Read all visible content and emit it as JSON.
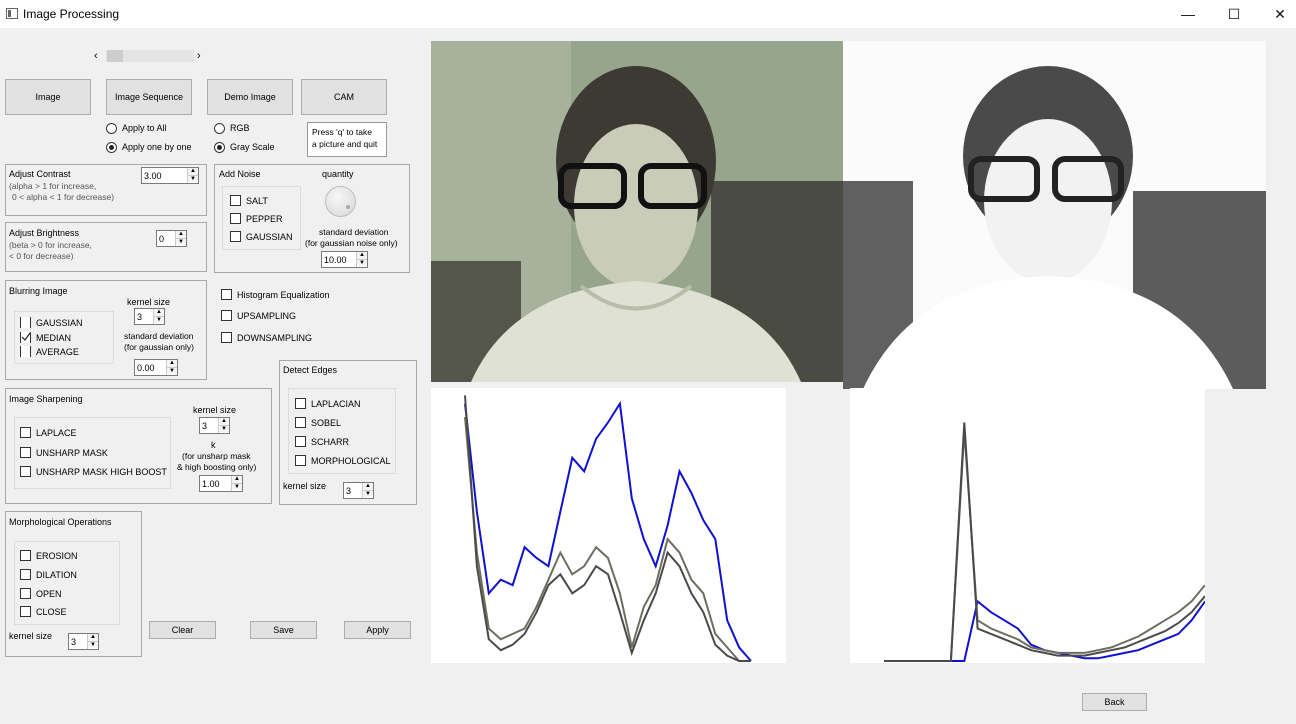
{
  "window": {
    "title": "Image Processing",
    "minimize": "—",
    "maximize": "☐",
    "close": "✕"
  },
  "slider": {
    "left": "‹",
    "right": "›"
  },
  "sources": {
    "image": "Image",
    "image_sequence": "Image Sequence",
    "demo_image": "Demo Image",
    "cam": "CAM"
  },
  "apply_mode": {
    "apply_all": "Apply to All",
    "apply_one": "Apply one by one",
    "selected": "apply_one"
  },
  "color_mode": {
    "rgb": "RGB",
    "gray": "Gray Scale",
    "selected": "gray"
  },
  "cam_info": {
    "line1": "Press 'q' to take",
    "line2": "a picture and quit"
  },
  "contrast": {
    "title": "Adjust Contrast",
    "hint1": "(alpha > 1 for increase,",
    "hint2": "0 < alpha < 1 for decrease)",
    "value": "3.00"
  },
  "brightness": {
    "title": "Adjust Brightness",
    "hint1": "(beta > 0 for increase,",
    "hint2": "< 0 for decrease)",
    "value": "0"
  },
  "noise": {
    "title": "Add Noise",
    "quantity_label": "quantity",
    "salt": "SALT",
    "pepper": "PEPPER",
    "gaussian": "GAUSSIAN",
    "std_label1": "standard deviation",
    "std_label2": "(for gaussian noise only)",
    "std_value": "10.00"
  },
  "blurring": {
    "title": "Blurring Image",
    "kernel_label": "kernel size",
    "kernel_value": "3",
    "gaussian": "GAUSSIAN",
    "median": "MEDIAN",
    "average": "AVERAGE",
    "median_checked": true,
    "std_label1": "standard deviation",
    "std_label2": "(for gaussian only)",
    "std_value": "0.00"
  },
  "options": {
    "hist_eq": "Histogram Equalization",
    "upsampling": "UPSAMPLING",
    "downsampling": "DOWNSAMPLING"
  },
  "sharpening": {
    "title": "Image Sharpening",
    "kernel_label": "kernel size",
    "kernel_value": "3",
    "laplace": "LAPLACE",
    "unsharp": "UNSHARP MASK",
    "highboost": "UNSHARP MASK  HIGH BOOST",
    "k_label": "k",
    "k_hint1": "(for unsharp mask",
    "k_hint2": "& high boosting only)",
    "k_value": "1.00"
  },
  "edges": {
    "title": "Detect Edges",
    "laplacian": "LAPLACIAN",
    "sobel": "SOBEL",
    "scharr": "SCHARR",
    "morphological": "MORPHOLOGICAL",
    "kernel_label": "kernel size",
    "kernel_value": "3"
  },
  "morph": {
    "title": "Morphological Operations",
    "erosion": "EROSION",
    "dilation": "DILATION",
    "open": "OPEN",
    "close": "CLOSE",
    "kernel_label": "kernel size",
    "kernel_value": "3"
  },
  "actions": {
    "clear": "Clear",
    "save": "Save",
    "apply": "Apply",
    "back": "Back"
  },
  "colors": {
    "hist_blue": "#1010d0",
    "hist_gray": "#6e6e60",
    "hist_dark": "#4a4a4a"
  },
  "chart_data": [
    {
      "type": "line",
      "series": [
        {
          "values": [
            0.95,
            0.55,
            0.25,
            0.3,
            0.28,
            0.42,
            0.38,
            0.35,
            0.55,
            0.75,
            0.7,
            0.82,
            0.88,
            0.95,
            0.6,
            0.45,
            0.35,
            0.5,
            0.7,
            0.62,
            0.52,
            0.45,
            0.15,
            0.05,
            0.0
          ]
        },
        {
          "values": [
            0.9,
            0.4,
            0.12,
            0.08,
            0.1,
            0.12,
            0.2,
            0.3,
            0.4,
            0.32,
            0.35,
            0.42,
            0.38,
            0.25,
            0.05,
            0.2,
            0.28,
            0.45,
            0.4,
            0.3,
            0.25,
            0.1,
            0.05,
            0.0,
            0.0
          ]
        },
        {
          "values": [
            0.98,
            0.35,
            0.08,
            0.04,
            0.06,
            0.1,
            0.18,
            0.28,
            0.32,
            0.25,
            0.28,
            0.35,
            0.32,
            0.18,
            0.03,
            0.15,
            0.25,
            0.4,
            0.35,
            0.25,
            0.18,
            0.06,
            0.02,
            0.0,
            0.0
          ]
        }
      ]
    },
    {
      "type": "line",
      "series": [
        {
          "values": [
            0.0,
            0.0,
            0.0,
            0.0,
            0.0,
            0.0,
            0.0,
            0.22,
            0.18,
            0.15,
            0.12,
            0.06,
            0.04,
            0.03,
            0.02,
            0.01,
            0.01,
            0.02,
            0.03,
            0.04,
            0.06,
            0.08,
            0.1,
            0.15,
            0.22
          ]
        },
        {
          "values": [
            0.0,
            0.0,
            0.0,
            0.0,
            0.0,
            0.0,
            0.85,
            0.15,
            0.12,
            0.1,
            0.08,
            0.05,
            0.04,
            0.03,
            0.03,
            0.03,
            0.04,
            0.05,
            0.07,
            0.09,
            0.12,
            0.15,
            0.18,
            0.22,
            0.28
          ]
        },
        {
          "values": [
            0.0,
            0.0,
            0.0,
            0.0,
            0.0,
            0.0,
            0.88,
            0.12,
            0.1,
            0.08,
            0.06,
            0.04,
            0.03,
            0.02,
            0.02,
            0.02,
            0.03,
            0.04,
            0.05,
            0.07,
            0.09,
            0.11,
            0.14,
            0.18,
            0.24
          ]
        }
      ]
    }
  ]
}
